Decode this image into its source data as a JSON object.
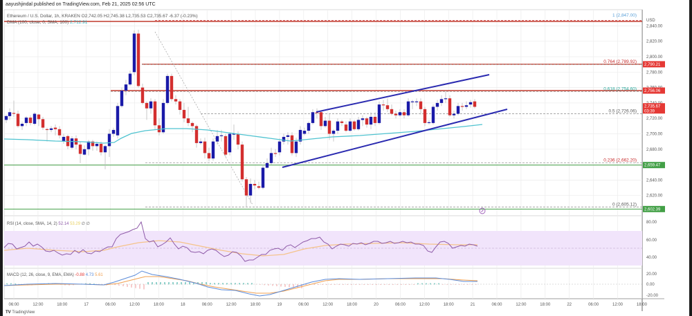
{
  "header": {
    "published": "aayushjindal published on TradingView.com, Feb 21, 2025 02:56 UTC",
    "symbol_line": "Ethereum / U.S. Dollar, 1h, KRAKEN  O2,742.05  H2,745.38  L2,735.53  C2,735.67  -6.37 (-0.23%)",
    "dma_label": "DMA (100, close, 0, SMA, 100)",
    "dma_value": "2,712.91"
  },
  "rsi": {
    "label": "RSI (14, close, SMA, 14, 2)",
    "value": "52.14",
    "ma_value": "53.29",
    "extra": "∅ ∅"
  },
  "macd": {
    "label": "MACD (12, 26, close, 9, EMA, EMA)",
    "hist": "-0.88",
    "macd": "4.73",
    "signal": "5.61"
  },
  "price_axis": {
    "currency": "USD",
    "ticks": [
      "2,840.00",
      "2,820.00",
      "2,800.00",
      "2,780.00",
      "2,760.00",
      "2,740.00",
      "2,720.00",
      "2,700.00",
      "2,680.00",
      "2,660.00",
      "2,640.00",
      "2,620.00"
    ],
    "tags": [
      {
        "value": "2,790.21",
        "color": "#e53935"
      },
      {
        "value": "2,756.06",
        "color": "#e53935"
      },
      {
        "value": "2,735.67",
        "sub": "03:39",
        "color": "#e53935"
      },
      {
        "value": "2,659.47",
        "color": "#43a047"
      },
      {
        "value": "2,602.39",
        "color": "#43a047"
      }
    ]
  },
  "rsi_axis": {
    "ticks": [
      "80.00",
      "60.00",
      "40.00"
    ]
  },
  "macd_axis": {
    "ticks": [
      "20.00",
      "0.00",
      "-20.00"
    ]
  },
  "fib_levels": [
    {
      "label": "1 (2,847.00)",
      "color": "#5aa0d8"
    },
    {
      "label": "0.764 (2,789.92)",
      "color": "#c62828"
    },
    {
      "label": "0.618 (2,754.60)",
      "color": "#26a69a"
    },
    {
      "label": "0.5 (2,726.06)",
      "color": "#555555"
    },
    {
      "label": "0.236 (2,662.20)",
      "color": "#c62828"
    },
    {
      "label": "0 (2,605.12)",
      "color": "#555555"
    }
  ],
  "time_axis": [
    "06:00",
    "12:00",
    "18:00",
    "17",
    "06:00",
    "12:00",
    "18:00",
    "18",
    "06:00",
    "12:00",
    "18:00",
    "19",
    "06:00",
    "12:00",
    "18:00",
    "20",
    "06:00",
    "12:00",
    "18:00",
    "21",
    "06:00",
    "12:00",
    "18:00",
    "22",
    "06:00",
    "12:00",
    "18:00"
  ],
  "footer": {
    "logo": "TradingView"
  },
  "colors": {
    "up": "#1a1aa8",
    "down": "#d32f2f",
    "sma": "#4fc3d0",
    "resistance": "#c0392b",
    "support": "#43a047",
    "channel": "#2a2ab0",
    "rsi_line": "#8e5aa8",
    "rsi_ma": "#f5c38a",
    "rsi_band": "#f1e4fb",
    "macd": "#5b8bd9",
    "signal": "#f0a050"
  },
  "chart_data": {
    "type": "candlestick",
    "title": "Ethereum / U.S. Dollar, 1h, KRAKEN",
    "xlabel": "",
    "ylabel": "USD",
    "ylim": [
      2600,
      2850
    ],
    "ohlc_last": {
      "open": 2742.05,
      "high": 2745.38,
      "low": 2735.53,
      "close": 2735.67,
      "change": -6.37,
      "change_pct": -0.23
    },
    "sma100_last": 2712.91,
    "horizontal_lines": [
      {
        "price": 2847.0,
        "type": "fib",
        "label": "1"
      },
      {
        "price": 2790.21,
        "type": "resistance"
      },
      {
        "price": 2789.92,
        "type": "fib",
        "label": "0.764"
      },
      {
        "price": 2756.06,
        "type": "resistance"
      },
      {
        "price": 2754.6,
        "type": "fib",
        "label": "0.618"
      },
      {
        "price": 2726.06,
        "type": "fib",
        "label": "0.5"
      },
      {
        "price": 2662.2,
        "type": "fib",
        "label": "0.236"
      },
      {
        "price": 2659.47,
        "type": "support"
      },
      {
        "price": 2605.12,
        "type": "fib",
        "label": "0"
      },
      {
        "price": 2602.39,
        "type": "support"
      }
    ],
    "channel": {
      "upper": [
        [
          457,
          162
        ],
        [
          707,
          108
        ]
      ],
      "lower": [
        [
          408,
          242
        ],
        [
          733,
          158
        ]
      ]
    },
    "indicators": {
      "rsi": {
        "value": 52.14,
        "ma": 53.29,
        "range": [
          20,
          80
        ],
        "band": [
          30,
          70
        ]
      },
      "macd": {
        "histogram": -0.88,
        "macd": 4.73,
        "signal": 5.61,
        "range": [
          -20,
          20
        ]
      }
    }
  }
}
